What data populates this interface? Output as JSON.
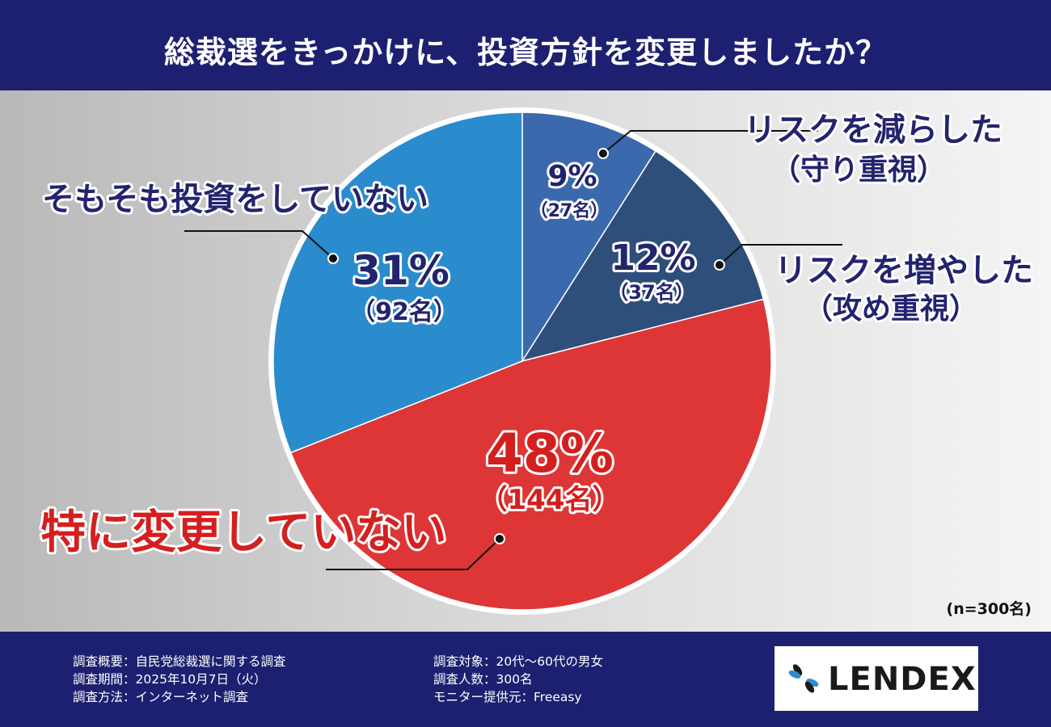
{
  "title": "総裁選をきっかけに、投資方針を変更しましたか？",
  "note": "(n=300名)",
  "colors": {
    "navy": "#1d2070",
    "slice_reduce": "#3a6aad",
    "slice_increase": "#2e4f7a",
    "slice_nochange": "#de3636",
    "slice_noinvest": "#2b8ccd",
    "label_navy": "#22246e",
    "label_red": "#d41f1f"
  },
  "chart_data": {
    "type": "pie",
    "title": "総裁選をきっかけに、投資方針を変更しましたか？",
    "total": 300,
    "slices": [
      {
        "key": "reduce",
        "label_line1": "リスクを減らした",
        "label_line2": "（守り重視）",
        "percent": 9,
        "percent_text": "9%",
        "count_text": "（27名）",
        "value": 27
      },
      {
        "key": "increase",
        "label_line1": "リスクを増やした",
        "label_line2": "（攻め重視）",
        "percent": 12,
        "percent_text": "12%",
        "count_text": "（37名）",
        "value": 37
      },
      {
        "key": "nochange",
        "label_line1": "特に変更していない",
        "label_line2": "",
        "percent": 48,
        "percent_text": "48%",
        "count_text": "（144名）",
        "value": 144
      },
      {
        "key": "noinvest",
        "label_line1": "そもそも投資をしていない",
        "label_line2": "",
        "percent": 31,
        "percent_text": "31%",
        "count_text": "（92名）",
        "value": 92
      }
    ]
  },
  "footer": {
    "left": [
      "調査概要：自民党総裁選に関する調査",
      "調査期間：2025年10月7日（火）",
      "調査方法：インターネット調査"
    ],
    "right": [
      "調査対象：20代〜60代の男女",
      "調査人数：300名",
      "モニター提供元：Freeasy"
    ],
    "logo": "LENDEX"
  }
}
